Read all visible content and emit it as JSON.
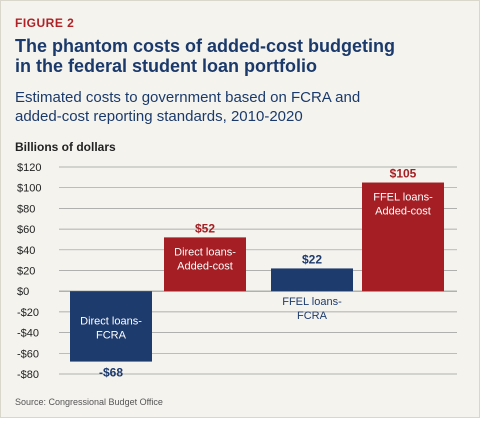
{
  "figure_label": "FIGURE 2",
  "title": "The phantom costs of added-cost budgeting\nin the federal student loan portfolio",
  "subtitle": "Estimated costs to government based on FCRA and\nadded-cost reporting standards, 2010-2020",
  "source": "Source: Congressional Budget Office",
  "colors": {
    "blue": "#1e3b6e",
    "red": "#a41e23",
    "grid": "#9a9a9a"
  },
  "chart_data": {
    "type": "bar",
    "ylabel": "Billions of dollars",
    "ylim": [
      -80,
      120
    ],
    "yticks": [
      120,
      100,
      80,
      60,
      40,
      20,
      0,
      -20,
      -40,
      -60,
      -80
    ],
    "ytick_labels": [
      "$120",
      "$100",
      "$80",
      "$60",
      "$40",
      "$20",
      "$0",
      "-$20",
      "-$40",
      "-$60",
      "-$80"
    ],
    "grid": true,
    "categories": [
      "Direct loans-FCRA",
      "Direct loans-Added-cost",
      "FFEL loans-FCRA",
      "FFEL loans-Added-cost"
    ],
    "category_lines": [
      [
        "Direct loans-",
        "FCRA"
      ],
      [
        "Direct loans-",
        "Added-cost"
      ],
      [
        "FFEL loans-",
        "FCRA"
      ],
      [
        "FFEL loans-",
        "Added-cost"
      ]
    ],
    "values": [
      -68,
      52,
      22,
      105
    ],
    "value_labels": [
      "-$68",
      "$52",
      "$22",
      "$105"
    ],
    "bar_colors": [
      "#1e3b6e",
      "#a41e23",
      "#1e3b6e",
      "#a41e23"
    ]
  }
}
